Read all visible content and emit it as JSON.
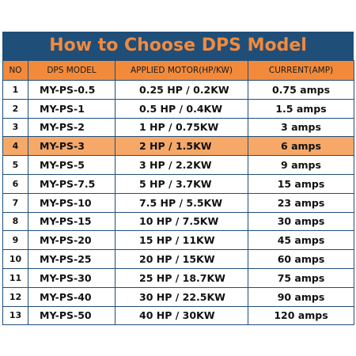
{
  "title": "How to Choose DPS Model",
  "columns": [
    "NO",
    "DPS MODEL",
    "APPLIED MOTOR(HP/KW)",
    "CURRENT(AMP)"
  ],
  "highlight_color": "#f6a869",
  "header_color": "#f28a3c",
  "frame_color": "#1f4e79",
  "rows": [
    {
      "no": "1",
      "model": "MY-PS-0.5",
      "motor": "0.25 HP / 0.2KW",
      "current": "0.75 amps",
      "highlight": false
    },
    {
      "no": "2",
      "model": "MY-PS-1",
      "motor": "0.5 HP / 0.4KW",
      "current": "1.5 amps",
      "highlight": false
    },
    {
      "no": "3",
      "model": "MY-PS-2",
      "motor": "1 HP / 0.75KW",
      "current": "3 amps",
      "highlight": false
    },
    {
      "no": "4",
      "model": "MY-PS-3",
      "motor": "2 HP / 1.5KW",
      "current": "6 amps",
      "highlight": true
    },
    {
      "no": "5",
      "model": "MY-PS-5",
      "motor": "3 HP / 2.2KW",
      "current": "9 amps",
      "highlight": false
    },
    {
      "no": "6",
      "model": "MY-PS-7.5",
      "motor": "5 HP / 3.7KW",
      "current": "15 amps",
      "highlight": false
    },
    {
      "no": "7",
      "model": "MY-PS-10",
      "motor": "7.5 HP / 5.5KW",
      "current": "23 amps",
      "highlight": false
    },
    {
      "no": "8",
      "model": "MY-PS-15",
      "motor": "10 HP / 7.5KW",
      "current": "30 amps",
      "highlight": false
    },
    {
      "no": "9",
      "model": "MY-PS-20",
      "motor": "15 HP / 11KW",
      "current": "45 amps",
      "highlight": false
    },
    {
      "no": "10",
      "model": "MY-PS-25",
      "motor": "20 HP / 15KW",
      "current": "60 amps",
      "highlight": false
    },
    {
      "no": "11",
      "model": "MY-PS-30",
      "motor": "25 HP / 18.7KW",
      "current": "75 amps",
      "highlight": false
    },
    {
      "no": "12",
      "model": "MY-PS-40",
      "motor": "30 HP / 22.5KW",
      "current": "90 amps",
      "highlight": false
    },
    {
      "no": "13",
      "model": "MY-PS-50",
      "motor": "40 HP / 30KW",
      "current": "120 amps",
      "highlight": false
    }
  ]
}
